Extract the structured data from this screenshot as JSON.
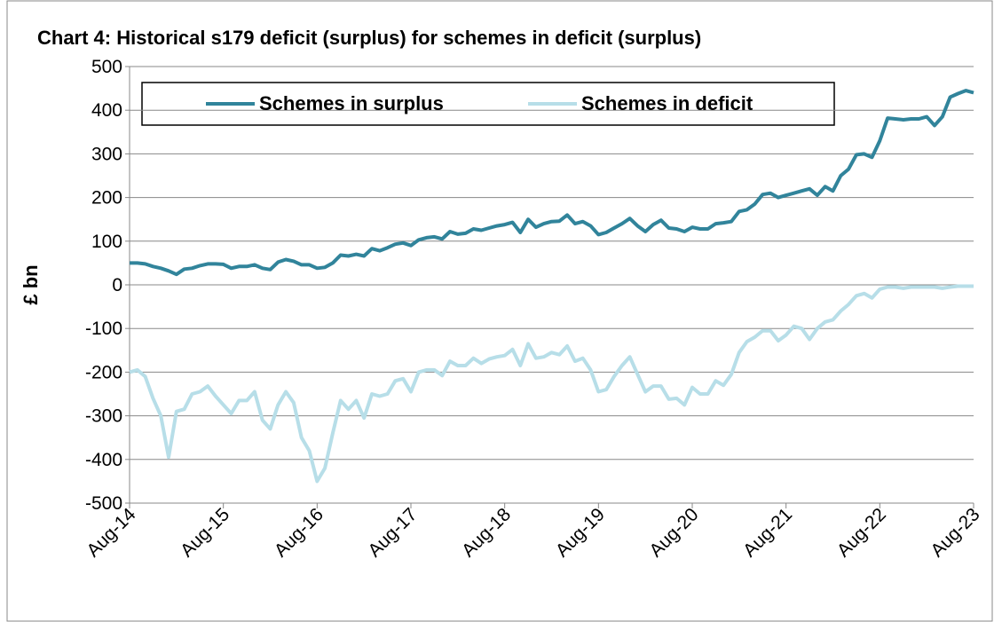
{
  "chart_data": {
    "type": "line",
    "title": "Chart 4: Historical s179 deficit (surplus)  for schemes in deficit (surplus)",
    "y_label": "£ bn",
    "categories": [
      "Aug-14",
      null,
      null,
      null,
      null,
      null,
      null,
      null,
      null,
      null,
      null,
      null,
      "Aug-15",
      null,
      null,
      null,
      null,
      null,
      null,
      null,
      null,
      null,
      null,
      null,
      "Aug-16",
      null,
      null,
      null,
      null,
      null,
      null,
      null,
      null,
      null,
      null,
      null,
      "Aug-17",
      null,
      null,
      null,
      null,
      null,
      null,
      null,
      null,
      null,
      null,
      null,
      "Aug-18",
      null,
      null,
      null,
      null,
      null,
      null,
      null,
      null,
      null,
      null,
      null,
      "Aug-19",
      null,
      null,
      null,
      null,
      null,
      null,
      null,
      null,
      null,
      null,
      null,
      "Aug-20",
      null,
      null,
      null,
      null,
      null,
      null,
      null,
      null,
      null,
      null,
      null,
      "Aug-21",
      null,
      null,
      null,
      null,
      null,
      null,
      null,
      null,
      null,
      null,
      null,
      "Aug-22",
      null,
      null,
      null,
      null,
      null,
      null,
      null,
      null,
      null,
      null,
      null,
      "Aug-23"
    ],
    "series": [
      {
        "name": "Schemes in surplus",
        "color": "#31849b",
        "values": [
          50,
          50,
          48,
          42,
          38,
          32,
          24,
          36,
          38,
          44,
          48,
          48,
          47,
          38,
          42,
          42,
          46,
          38,
          35,
          52,
          58,
          54,
          46,
          46,
          38,
          40,
          50,
          68,
          66,
          70,
          66,
          83,
          78,
          85,
          93,
          96,
          90,
          103,
          108,
          110,
          105,
          122,
          116,
          118,
          128,
          125,
          130,
          135,
          138,
          143,
          120,
          150,
          132,
          140,
          145,
          146,
          160,
          140,
          145,
          135,
          115,
          120,
          130,
          140,
          152,
          135,
          122,
          138,
          148,
          130,
          128,
          122,
          132,
          128,
          128,
          140,
          142,
          145,
          168,
          172,
          185,
          207,
          210,
          200,
          205,
          210,
          215,
          220,
          205,
          225,
          215,
          250,
          265,
          298,
          300,
          292,
          330,
          382,
          380,
          378,
          380,
          380,
          385,
          365,
          385,
          430,
          438,
          445,
          440
        ]
      },
      {
        "name": "Schemes in deficit",
        "color": "#b7dee8",
        "values": [
          -200,
          -195,
          -210,
          -260,
          -300,
          -395,
          -290,
          -285,
          -250,
          -245,
          -232,
          -255,
          -275,
          -295,
          -265,
          -265,
          -245,
          -310,
          -330,
          -275,
          -245,
          -270,
          -350,
          -380,
          -450,
          -420,
          -340,
          -265,
          -285,
          -265,
          -305,
          -250,
          -255,
          -250,
          -220,
          -215,
          -245,
          -200,
          -195,
          -195,
          -208,
          -175,
          -185,
          -185,
          -168,
          -180,
          -170,
          -165,
          -162,
          -148,
          -185,
          -135,
          -168,
          -165,
          -155,
          -160,
          -140,
          -175,
          -168,
          -195,
          -245,
          -240,
          -210,
          -185,
          -165,
          -205,
          -245,
          -232,
          -232,
          -262,
          -260,
          -275,
          -235,
          -250,
          -250,
          -220,
          -230,
          -205,
          -155,
          -130,
          -120,
          -105,
          -105,
          -128,
          -115,
          -95,
          -100,
          -125,
          -100,
          -85,
          -80,
          -60,
          -45,
          -25,
          -20,
          -30,
          -10,
          -5,
          -5,
          -8,
          -5,
          -5,
          -5,
          -5,
          -8,
          -5,
          -3,
          -3,
          -3
        ]
      }
    ],
    "ylim": [
      -500,
      500
    ],
    "yticks": [
      -500,
      -400,
      -300,
      -200,
      -100,
      0,
      100,
      200,
      300,
      400,
      500
    ],
    "grid": true,
    "legend": "top"
  }
}
